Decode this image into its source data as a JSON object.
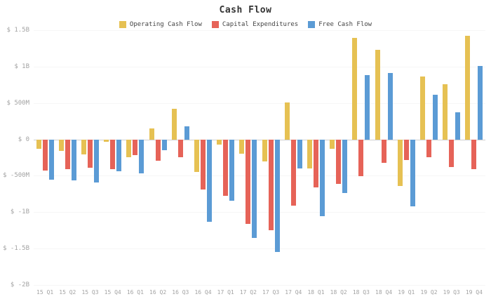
{
  "chart_data": {
    "type": "bar",
    "title": "Cash Flow",
    "unit": "millions USD",
    "categories": [
      "15 Q1",
      "15 Q2",
      "15 Q3",
      "15 Q4",
      "16 Q1",
      "16 Q2",
      "16 Q3",
      "16 Q4",
      "17 Q1",
      "17 Q2",
      "17 Q3",
      "17 Q4",
      "18 Q1",
      "18 Q2",
      "18 Q3",
      "18 Q4",
      "19 Q1",
      "19 Q2",
      "19 Q3",
      "19 Q4"
    ],
    "series": [
      {
        "name": "Operating Cash Flow",
        "color": "#e6c153",
        "values": [
          -131,
          -160,
          -203,
          -30,
          -250,
          150,
          424,
          -448,
          -70,
          -200,
          -301,
          510,
          -398,
          -130,
          1391,
          1235,
          -640,
          864,
          756,
          1425
        ]
      },
      {
        "name": "Capital Expenditures",
        "color": "#e66358",
        "values": [
          -426,
          -405,
          -392,
          -411,
          -217,
          -295,
          -248,
          -686,
          -773,
          -1158,
          -1245,
          -912,
          -656,
          -610,
          -510,
          -325,
          -280,
          -250,
          -385,
          -412
        ]
      },
      {
        "name": "Free Cash Flow",
        "color": "#5b9bd5",
        "values": [
          -558,
          -565,
          -595,
          -441,
          -467,
          -145,
          176,
          -1134,
          -843,
          -1358,
          -1546,
          -402,
          -1054,
          -740,
          881,
          910,
          -920,
          614,
          371,
          1013
        ]
      }
    ],
    "y_axis": {
      "max": 1500,
      "min": -2000,
      "ticks": [
        1500,
        1000,
        500,
        0,
        -500,
        -1000,
        -1500,
        -2000
      ],
      "tick_labels": [
        "$ 1.5B",
        "$ 1B",
        "$ 500M",
        "$ 0",
        "$ -500M",
        "$ -1B",
        "$ -1.5B",
        "$ -2B"
      ]
    },
    "legend_position": "top",
    "grid": false
  }
}
